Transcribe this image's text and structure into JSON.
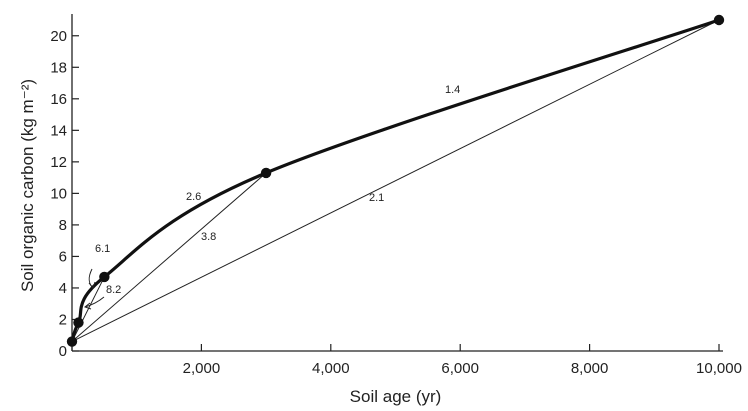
{
  "chart_data": {
    "type": "line",
    "title": "",
    "xlabel": "Soil age (yr)",
    "ylabel": "Soil organic carbon (kg m⁻²)",
    "xlim": [
      0,
      10000
    ],
    "ylim": [
      0,
      21
    ],
    "x_ticks": [
      0,
      2000,
      4000,
      6000,
      8000,
      10000
    ],
    "x_tick_labels": [
      "2,000",
      "4,000",
      "6,000",
      "8,000",
      "10,000"
    ],
    "y_ticks": [
      0,
      2,
      4,
      6,
      8,
      10,
      12,
      14,
      16,
      18,
      20
    ],
    "y_tick_labels": [
      "0",
      "2",
      "4",
      "6",
      "8",
      "10",
      "12",
      "14",
      "16",
      "18",
      "20"
    ],
    "grid": false,
    "series": [
      {
        "values": [
          {
            "x": 0,
            "y": 0.6
          },
          {
            "x": 100,
            "y": 1.8
          },
          {
            "x": 500,
            "y": 4.7
          },
          {
            "x": 3000,
            "y": 11.3
          },
          {
            "x": 10000,
            "y": 21
          }
        ]
      }
    ],
    "annotations": [
      {
        "text": "6.1"
      },
      {
        "text": "8.2"
      },
      {
        "text": "2.6"
      },
      {
        "text": "3.8"
      },
      {
        "text": "1.4"
      },
      {
        "text": "2.1"
      }
    ]
  }
}
